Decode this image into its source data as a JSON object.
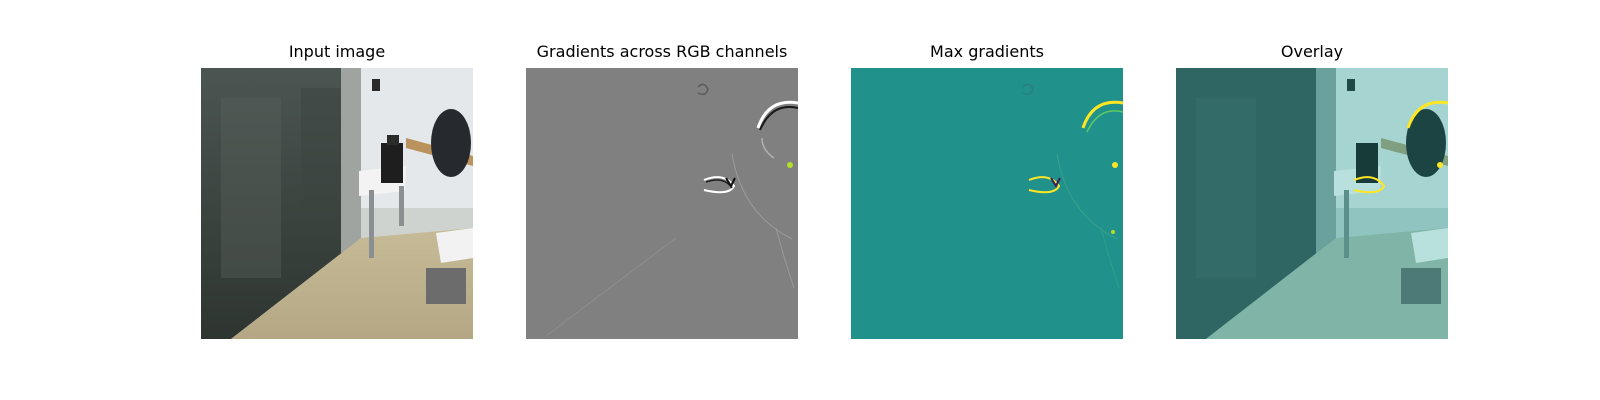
{
  "figure": {
    "panels": [
      {
        "title": "Input image",
        "kind": "photo"
      },
      {
        "title": "Gradients across RGB channels",
        "kind": "gradients-gray"
      },
      {
        "title": "Max gradients",
        "kind": "gradients-max"
      },
      {
        "title": "Overlay",
        "kind": "overlay"
      }
    ],
    "colors": {
      "gray_background": "#808080",
      "teal_background": "#21918c",
      "highlight_yellow": "#fde725",
      "highlight_green": "#b5de2b"
    }
  }
}
